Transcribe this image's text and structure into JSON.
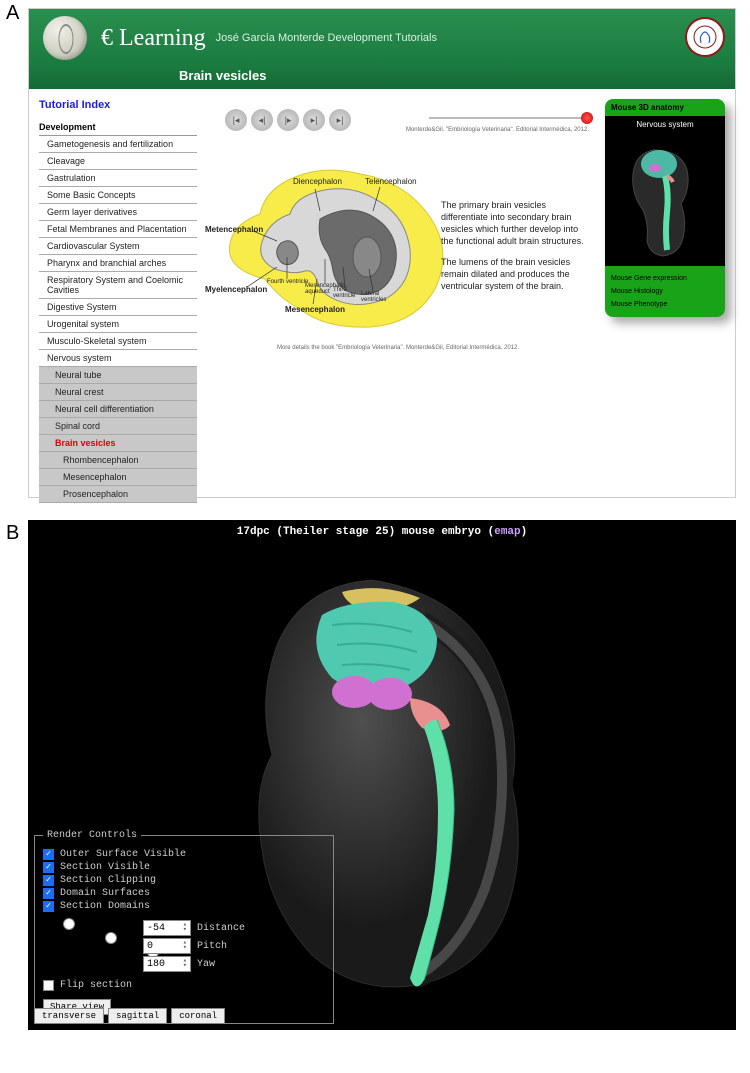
{
  "panelA": {
    "label": "A",
    "header": {
      "title": "€ Learning",
      "subtitle": "José García Monterde Development Tutorials",
      "row2": "Brain vesicles"
    },
    "tutorialIndex": "Tutorial Index",
    "devHeading": "Development",
    "nav": [
      "Gametogenesis and fertilization",
      "Cleavage",
      "Gastrulation",
      "Some Basic Concepts",
      "Germ layer derivatives",
      "Fetal Membranes and Placentation",
      "Cardiovascular System",
      "Pharynx and branchial arches",
      "Respiratory System and Coelomic Cavities",
      "Digestive System",
      "Urogenital system",
      "Musculo-Skeletal system",
      "Nervous system"
    ],
    "navSub": [
      "Neural tube",
      "Neural crest",
      "Neural cell differentiation",
      "Spinal cord"
    ],
    "navActive": "Brain vesicles",
    "navSub2": [
      "Rhombencephalon",
      "Mesencephalon",
      "Prosencephalon"
    ],
    "diagramLabels": {
      "diencephalon": "Diencephalon",
      "telencephalon": "Telencephalon",
      "metencephalon": "Metencephalon",
      "myelencephalon": "Myelencephalon",
      "mesencephalon": "Mesencephalon",
      "fourthV": "Fourth ventricle",
      "aqueduct": "Mesencephalic aqueduct",
      "thirdV": "Third ventricle",
      "lateralV": "Lateral ventricles"
    },
    "citationTop": "Monterde&Gil. \"Embriología Veterinaria\". Editorial Intermédica, 2012.",
    "desc1": "The primary brain vesicles differentiate into secondary brain vesicles which further develop into the functional adult brain structures.",
    "desc2": "The lumens of the brain vesicles remain dilated and produces the ventricular system of the brain.",
    "citationBot": "More details the book \"Embriología Veterinaria\". Monterde&Gil, Editorial Intermédica, 2012.",
    "mouse3d": {
      "heading": "Mouse 3D anatomy",
      "nsTitle": "Nervous system",
      "links": [
        "Mouse Gene expression",
        "Mouse Histology",
        "Mouse Phenotype"
      ]
    },
    "colors": {
      "headerGreen": "#1a7a3f",
      "linkGreen": "#19a319",
      "brainYellow": "#f7ec4a",
      "brainInnerDark": "#6b6b6b",
      "brainInnerLight": "#d8d8d8"
    }
  },
  "panelB": {
    "label": "B",
    "titlePre": "17dpc (Theiler stage 25) mouse embryo (",
    "titleLink": "emap",
    "titlePost": ")",
    "renderTitle": "Render Controls",
    "checks": [
      "Outer Surface Visible",
      "Section Visible",
      "Section Clipping",
      "Domain Surfaces",
      "Section Domains"
    ],
    "flip": "Flip section",
    "nums": [
      {
        "val": "-54",
        "label": "Distance"
      },
      {
        "val": "0",
        "label": "Pitch"
      },
      {
        "val": "180",
        "label": "Yaw"
      }
    ],
    "share": "Share view",
    "views": [
      "transverse",
      "sagittal",
      "coronal"
    ],
    "colors": {
      "brain": "#4fc9b0",
      "olfactory": "#d070d0",
      "cord": "#5ee0a8",
      "top": "#d8c060",
      "pons": "#e89090"
    }
  }
}
